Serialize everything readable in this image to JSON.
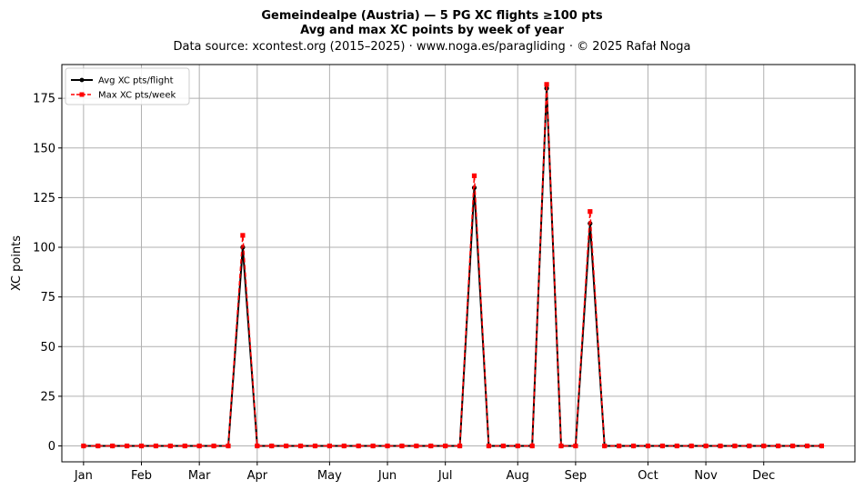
{
  "chart_data": {
    "type": "line",
    "title": "Gemeindealpe (Austria)  —  5 PG XC flights ≥100 pts",
    "subtitle": "Avg and max XC points by week of year",
    "source": "Data source: xcontest.org (2015–2025)  ·  www.noga.es/paragliding  ·  © 2025 Rafał Noga",
    "xlabel": "",
    "ylabel": "XC points",
    "ylim": [
      -8,
      192
    ],
    "xlim": [
      -1.5,
      53.3
    ],
    "yticks": [
      0,
      25,
      50,
      75,
      100,
      125,
      150,
      175
    ],
    "xticks": [
      {
        "label": "Jan",
        "week": 0
      },
      {
        "label": "Feb",
        "week": 4
      },
      {
        "label": "Mar",
        "week": 8
      },
      {
        "label": "Apr",
        "week": 12
      },
      {
        "label": "May",
        "week": 17
      },
      {
        "label": "Jun",
        "week": 21
      },
      {
        "label": "Jul",
        "week": 25
      },
      {
        "label": "Aug",
        "week": 30
      },
      {
        "label": "Sep",
        "week": 34
      },
      {
        "label": "Oct",
        "week": 39
      },
      {
        "label": "Nov",
        "week": 43
      },
      {
        "label": "Dec",
        "week": 47
      }
    ],
    "grid": true,
    "legend_position": "top-left",
    "x": [
      0,
      1,
      2,
      3,
      4,
      5,
      6,
      7,
      8,
      9,
      10,
      11,
      12,
      13,
      14,
      15,
      16,
      17,
      18,
      19,
      20,
      21,
      22,
      23,
      24,
      25,
      26,
      27,
      28,
      29,
      30,
      31,
      32,
      33,
      34,
      35,
      36,
      37,
      38,
      39,
      40,
      41,
      42,
      43,
      44,
      45,
      46,
      47,
      48,
      49,
      50,
      51
    ],
    "series": [
      {
        "name": "Avg XC pts/flight",
        "color": "#000000",
        "style": "solid-circle",
        "values": [
          0,
          0,
          0,
          0,
          0,
          0,
          0,
          0,
          0,
          0,
          0,
          100,
          0,
          0,
          0,
          0,
          0,
          0,
          0,
          0,
          0,
          0,
          0,
          0,
          0,
          0,
          0,
          130,
          0,
          0,
          0,
          0,
          180,
          0,
          0,
          112,
          0,
          0,
          0,
          0,
          0,
          0,
          0,
          0,
          0,
          0,
          0,
          0,
          0,
          0,
          0,
          0
        ]
      },
      {
        "name": "Max XC pts/week",
        "color": "#ff0000",
        "style": "dashed-square",
        "values": [
          0,
          0,
          0,
          0,
          0,
          0,
          0,
          0,
          0,
          0,
          0,
          106,
          0,
          0,
          0,
          0,
          0,
          0,
          0,
          0,
          0,
          0,
          0,
          0,
          0,
          0,
          0,
          136,
          0,
          0,
          0,
          0,
          182,
          0,
          0,
          118,
          0,
          0,
          0,
          0,
          0,
          0,
          0,
          0,
          0,
          0,
          0,
          0,
          0,
          0,
          0,
          0
        ]
      }
    ]
  }
}
